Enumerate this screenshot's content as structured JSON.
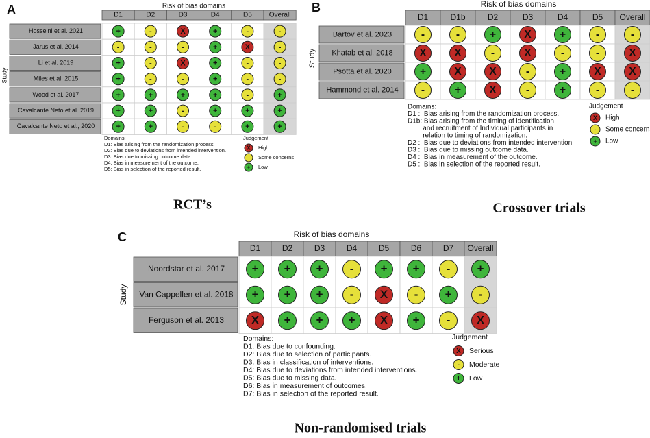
{
  "panels": [
    {
      "label": "A",
      "header": "Risk of bias domains",
      "columns": [
        "D1",
        "D2",
        "D3",
        "D4",
        "D5",
        "Overall"
      ],
      "axis_label": "Study",
      "studies": [
        {
          "name": "Hosseini et al. 2021",
          "judgements": [
            "+",
            "-",
            "X",
            "+",
            "-",
            "-"
          ]
        },
        {
          "name": "Jarus et al. 2014",
          "judgements": [
            "-",
            "-",
            "-",
            "+",
            "X",
            "-"
          ]
        },
        {
          "name": "Li et al. 2019",
          "judgements": [
            "+",
            "-",
            "X",
            "+",
            "-",
            "-"
          ]
        },
        {
          "name": "Miles et al. 2015",
          "judgements": [
            "+",
            "-",
            "-",
            "+",
            "-",
            "-"
          ]
        },
        {
          "name": "Wood et al. 2017",
          "judgements": [
            "+",
            "+",
            "+",
            "+",
            "-",
            "+"
          ]
        },
        {
          "name": "Cavalcante Neto et al. 2019",
          "judgements": [
            "+",
            "+",
            "-",
            "+",
            "+",
            "+"
          ]
        },
        {
          "name": "Cavalcante Neto et al., 2020",
          "judgements": [
            "+",
            "+",
            "-",
            "-",
            "+",
            "+"
          ]
        }
      ],
      "domains": [
        "Domains:",
        "D1: Bias arising from the randomization process.",
        "D2: Bias due to deviations from intended intervention.",
        "D3: Bias due to missing outcome data.",
        "D4: Bias in measurement of the outcome.",
        "D5: Bias in selection of the reported result."
      ],
      "judgement_title": "Judgement",
      "legend": [
        {
          "symbol": "X",
          "label": "High",
          "color": "#bf2a26"
        },
        {
          "symbol": "-",
          "label": "Some concerns",
          "color": "#e6e03a"
        },
        {
          "symbol": "+",
          "label": "Low",
          "color": "#3fb53b"
        }
      ],
      "caption": "RCT’s"
    },
    {
      "label": "B",
      "header": "Risk of bias domains",
      "columns": [
        "D1",
        "D1b",
        "D2",
        "D3",
        "D4",
        "D5",
        "Overall"
      ],
      "axis_label": "Study",
      "studies": [
        {
          "name": "Bartov et al. 2023",
          "judgements": [
            "-",
            "-",
            "+",
            "X",
            "+",
            "-",
            "-"
          ]
        },
        {
          "name": "Khatab et al. 2018",
          "judgements": [
            "X",
            "X",
            "-",
            "X",
            "-",
            "-",
            "X"
          ]
        },
        {
          "name": "Psotta et al. 2020",
          "judgements": [
            "+",
            "X",
            "X",
            "-",
            "+",
            "X",
            "X"
          ]
        },
        {
          "name": "Hammond et al. 2014",
          "judgements": [
            "-",
            "+",
            "X",
            "-",
            "+",
            "-",
            "-"
          ]
        }
      ],
      "domains": [
        "Domains:",
        "D1 :  Bias arising from the randomization process.",
        "D1b: Bias arising from the timing of identification",
        "        and recruitment of Individual participants in",
        "        relation to timing of randomization.",
        "D2 :  Bias due to deviations from intended intervention.",
        "D3 :  Bias due to missing outcome data.",
        "D4 :  Bias in measurement of the outcome.",
        "D5 :  Bias in selection of the reported result."
      ],
      "judgement_title": "Judgement",
      "legend": [
        {
          "symbol": "X",
          "label": "High",
          "color": "#bf2a26"
        },
        {
          "symbol": "-",
          "label": "Some concerns",
          "color": "#e6e03a"
        },
        {
          "symbol": "+",
          "label": "Low",
          "color": "#3fb53b"
        }
      ],
      "caption": "Crossover trials"
    },
    {
      "label": "C",
      "header": "Risk of bias domains",
      "columns": [
        "D1",
        "D2",
        "D3",
        "D4",
        "D5",
        "D6",
        "D7",
        "Overall"
      ],
      "axis_label": "Study",
      "studies": [
        {
          "name": "Noordstar et al. 2017",
          "judgements": [
            "+",
            "+",
            "+",
            "-",
            "+",
            "+",
            "-",
            "+"
          ]
        },
        {
          "name": "Van Cappellen et al. 2018",
          "judgements": [
            "+",
            "+",
            "+",
            "-",
            "X",
            "-",
            "+",
            "-"
          ]
        },
        {
          "name": "Ferguson et al. 2013",
          "judgements": [
            "X",
            "+",
            "+",
            "+",
            "X",
            "+",
            "-",
            "X"
          ]
        }
      ],
      "domains": [
        "Domains:",
        "D1: Bias due to confounding.",
        "D2: Bias due to selection of participants.",
        "D3: Bias in classification of interventions.",
        "D4: Bias due to deviations from intended interventions.",
        "D5: Bias due to missing data.",
        "D6: Bias in measurement of outcomes.",
        "D7: Bias in selection of the reported result."
      ],
      "judgement_title": "Judgement",
      "legend": [
        {
          "symbol": "X",
          "label": "Serious",
          "color": "#bf2a26"
        },
        {
          "symbol": "-",
          "label": "Moderate",
          "color": "#e6e03a"
        },
        {
          "symbol": "+",
          "label": "Low",
          "color": "#3fb53b"
        }
      ],
      "caption": "Non-randomised trials"
    }
  ]
}
